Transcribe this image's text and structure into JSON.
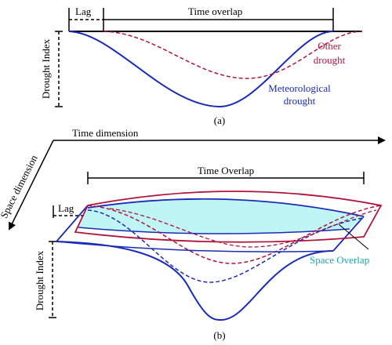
{
  "colors": {
    "meteorological": "#1a2bb8",
    "other": "#b0143c",
    "overlap_fill": "#bff5f5",
    "space_overlap_text": "#1aa6a6",
    "axis": "#000000"
  },
  "panel_a": {
    "lag_label": "Lag",
    "overlap_label": "Time overlap",
    "y_label": "Drought Index",
    "other_drought_label_1": "Other",
    "other_drought_label_2": "drought",
    "meteorological_label_1": "Meteorological",
    "meteorological_label_2": "drought",
    "caption": "(a)"
  },
  "panel_b": {
    "time_axis_label": "Time dimension",
    "space_axis_label": "Space dimension",
    "overlap_label": "Time Overlap",
    "lag_label": "Lag",
    "y_label": "Drought Index",
    "space_overlap_label": "Space Overlap",
    "caption": "(b)"
  }
}
